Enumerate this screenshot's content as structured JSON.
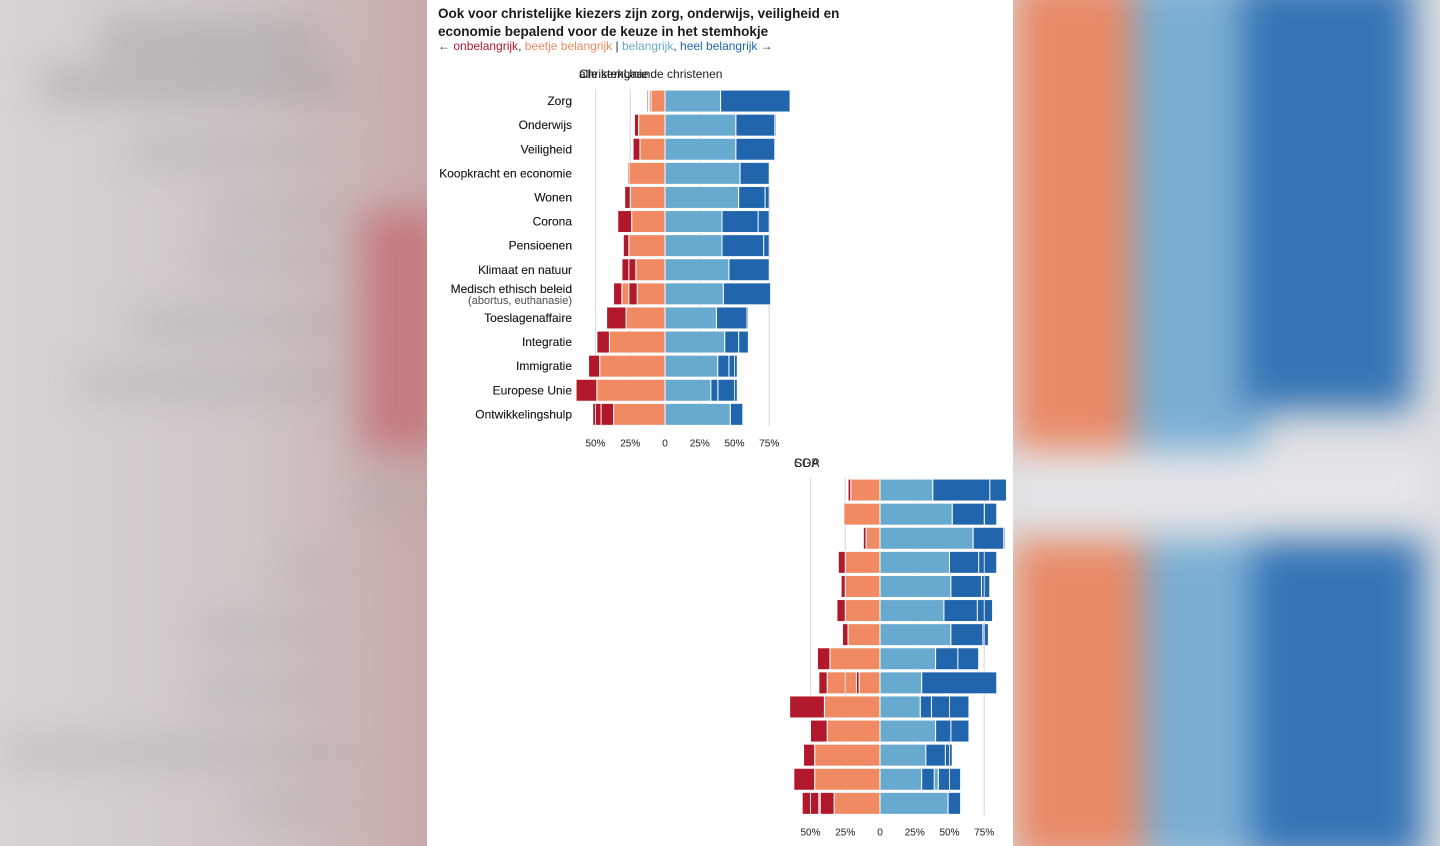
{
  "title": "Ook voor christelijke kiezers zijn zorg, onderwijs, veiligheid en economie bepalend voor de keuze in het stemhokje",
  "legend": {
    "left_arrow": "←",
    "unimportant": "onbelangrijk",
    "sep1": ",",
    "bit_important": "beetje belangrijk",
    "sep2": "|",
    "important": "belangrijk",
    "sep3": ",",
    "very_important": "heel belangrijk",
    "right_arrow": "→"
  },
  "colors": {
    "unimportant": "#b2182b",
    "bit_important": "#ef8a62",
    "important": "#67a9cf",
    "very_important": "#2166ac",
    "grid": "#dddddd",
    "text": "#222222"
  },
  "chart_data": {
    "type": "bar",
    "orientation": "horizontal-diverging",
    "categories": [
      {
        "label": "Zorg",
        "sub": ""
      },
      {
        "label": "Onderwijs",
        "sub": ""
      },
      {
        "label": "Veiligheid",
        "sub": ""
      },
      {
        "label": "Koopkracht en economie",
        "sub": ""
      },
      {
        "label": "Wonen",
        "sub": ""
      },
      {
        "label": "Corona",
        "sub": ""
      },
      {
        "label": "Pensioenen",
        "sub": ""
      },
      {
        "label": "Klimaat en natuur",
        "sub": ""
      },
      {
        "label": "Medisch ethisch beleid",
        "sub": "(abortus, euthanasie)"
      },
      {
        "label": "Toeslagenaffaire",
        "sub": ""
      },
      {
        "label": "Integratie",
        "sub": ""
      },
      {
        "label": "Immigratie",
        "sub": ""
      },
      {
        "label": "Europese Unie",
        "sub": ""
      },
      {
        "label": "Ontwikkelingshulp",
        "sub": ""
      }
    ],
    "series_names": [
      "onbelangrijk",
      "beetje belangrijk",
      "belangrijk",
      "heel belangrijk"
    ],
    "xlim": [
      -55,
      80
    ],
    "ticks": [
      {
        "value": -50,
        "label": "50%"
      },
      {
        "value": -25,
        "label": "25%"
      },
      {
        "value": 0,
        "label": "0"
      },
      {
        "value": 25,
        "label": "25%"
      },
      {
        "value": 50,
        "label": "50%"
      },
      {
        "value": 75,
        "label": "75%"
      }
    ],
    "panels": [
      {
        "title": "alle kerkgaande christenen",
        "values": [
          [
            1,
            12,
            40,
            46
          ],
          [
            2,
            17,
            49,
            31
          ],
          [
            3,
            17,
            52,
            27
          ],
          [
            3,
            22,
            52,
            23
          ],
          [
            3,
            22,
            50,
            25
          ],
          [
            6,
            20,
            43,
            32
          ],
          [
            4,
            22,
            44,
            31
          ],
          [
            7,
            24,
            43,
            26
          ],
          [
            6,
            31,
            42,
            21
          ],
          [
            12,
            28,
            36,
            24
          ],
          [
            8,
            33,
            43,
            17
          ],
          [
            10,
            39,
            37,
            15
          ],
          [
            11,
            39,
            38,
            14
          ],
          [
            13,
            39,
            37,
            12
          ]
        ]
      },
      {
        "title": "CDA",
        "values": [
          [
            1,
            9,
            44,
            47
          ],
          [
            1,
            16,
            47,
            37
          ],
          [
            1,
            10,
            59,
            31
          ],
          [
            3,
            15,
            53,
            31
          ],
          [
            4,
            19,
            57,
            22
          ],
          [
            2,
            19,
            42,
            39
          ],
          [
            3,
            21,
            44,
            34
          ],
          [
            3,
            27,
            48,
            23
          ],
          [
            6,
            38,
            49,
            9
          ],
          [
            9,
            28,
            35,
            29
          ],
          [
            6,
            31,
            50,
            14
          ],
          [
            9,
            40,
            39,
            13
          ],
          [
            6,
            37,
            42,
            16
          ],
          [
            12,
            44,
            35,
            10
          ]
        ]
      },
      {
        "title": "ChristenUnie",
        "values": [
          [
            1,
            10,
            40,
            50
          ],
          [
            3,
            19,
            51,
            28
          ],
          [
            5,
            18,
            51,
            28
          ],
          [
            1,
            26,
            54,
            21
          ],
          [
            4,
            25,
            53,
            19
          ],
          [
            10,
            24,
            41,
            26
          ],
          [
            4,
            26,
            41,
            30
          ],
          [
            5,
            21,
            46,
            29
          ],
          [
            6,
            20,
            42,
            34
          ],
          [
            14,
            28,
            37,
            22
          ],
          [
            9,
            40,
            43,
            10
          ],
          [
            8,
            47,
            38,
            8
          ],
          [
            15,
            49,
            33,
            5
          ],
          [
            9,
            37,
            47,
            9
          ]
        ]
      },
      {
        "title": "SGP",
        "values": [
          [
            2,
            21,
            38,
            41
          ],
          [
            0,
            26,
            52,
            23
          ],
          [
            2,
            10,
            67,
            22
          ],
          [
            5,
            25,
            50,
            21
          ],
          [
            3,
            25,
            51,
            22
          ],
          [
            6,
            25,
            46,
            24
          ],
          [
            4,
            23,
            51,
            23
          ],
          [
            9,
            36,
            40,
            16
          ],
          [
            2,
            15,
            30,
            54
          ],
          [
            25,
            40,
            29,
            8
          ],
          [
            12,
            38,
            40,
            11
          ],
          [
            8,
            47,
            33,
            14
          ],
          [
            15,
            47,
            30,
            9
          ],
          [
            10,
            33,
            49,
            9
          ]
        ]
      }
    ]
  }
}
